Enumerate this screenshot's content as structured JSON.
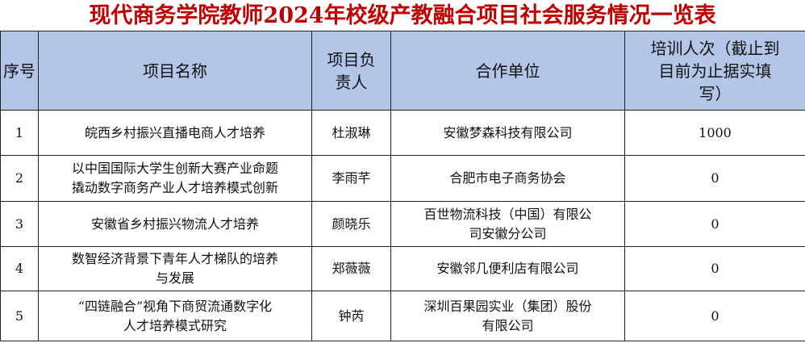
{
  "title": "现代商务学院教师2024年校级产教融合项目社会服务情况一览表",
  "headers": [
    "序号",
    "项目名称",
    "项目负\n责人",
    "合作单位",
    "培训人次（截止到\n目前为止据实填\n写）"
  ],
  "rows": [
    {
      "no": "1",
      "name": "皖西乡村振兴直播电商人才培养",
      "leader": "杜淑琳",
      "partner": "安徽梦森科技有限公司",
      "count": "1000"
    },
    {
      "no": "2",
      "name": "以中国国际大学生创新大赛产业命题\n撬动数字商务产业人才培养模式创新",
      "leader": "李雨芊",
      "partner": "合肥市电子商务协会",
      "count": "0"
    },
    {
      "no": "3",
      "name": "安徽省乡村振兴物流人才培养",
      "leader": "颜晓乐",
      "partner": "百世物流科技（中国）有限公\n司安徽分公司",
      "count": "0"
    },
    {
      "no": "4",
      "name": "数智经济背景下青年人才梯队的培养\n与发展",
      "leader": "郑薇薇",
      "partner": "安徽邻几便利店有限公司",
      "count": "0"
    },
    {
      "no": "5",
      "name": "“四链融合”视角下商贸流通数字化\n人才培养模式研究",
      "leader": "钟芮",
      "partner": "深圳百果园实业（集团）股份\n有限公司",
      "count": "0"
    }
  ]
}
